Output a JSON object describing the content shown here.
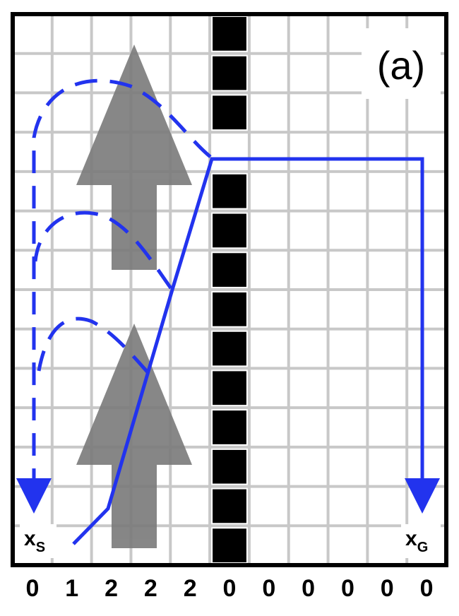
{
  "panel_label": "(a)",
  "start_label": {
    "main": "x",
    "sub": "S"
  },
  "goal_label": {
    "main": "x",
    "sub": "G"
  },
  "column_values": [
    "0",
    "1",
    "2",
    "2",
    "2",
    "0",
    "0",
    "0",
    "0",
    "0",
    "0"
  ],
  "colors": {
    "path": "#2233ee",
    "grid": "#c8c8c8",
    "wall": "#000000",
    "wind_arrow": "#7a7a7a",
    "frame": "#000000"
  }
}
